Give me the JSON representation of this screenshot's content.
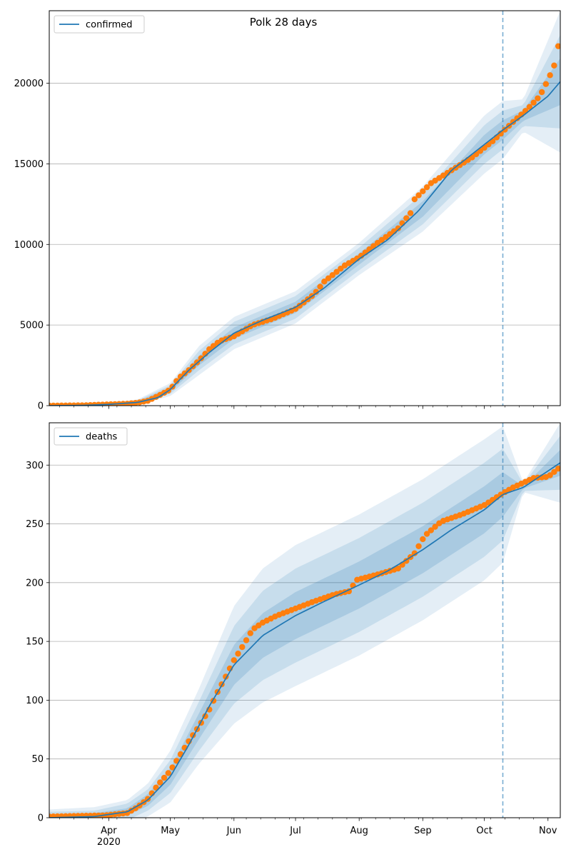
{
  "figure": {
    "title": "Polk 28 days"
  },
  "chart_data": [
    {
      "type": "line",
      "title": "Polk 28 days",
      "xlabel": "",
      "ylabel": "",
      "x_ticks": [
        "Apr",
        "May",
        "Jun",
        "Jul",
        "Aug",
        "Sep",
        "Oct",
        "Nov"
      ],
      "x_year_label": "2020",
      "x_range": [
        "2020-03-03",
        "2020-11-07"
      ],
      "ylim": [
        0,
        24500
      ],
      "y_ticks": [
        0,
        5000,
        10000,
        15000,
        20000
      ],
      "y_tick_labels": [
        "0",
        "5000",
        "10000",
        "15000",
        "20000"
      ],
      "grid": "horizontal",
      "legend_position": "upper-left",
      "forecast_start": "2020-10-10",
      "series": [
        {
          "name": "confirmed",
          "kind": "model-line",
          "color": "#1f77b4",
          "x": [
            "2020-03-03",
            "2020-03-20",
            "2020-04-01",
            "2020-04-15",
            "2020-04-25",
            "2020-05-01",
            "2020-05-10",
            "2020-05-20",
            "2020-06-01",
            "2020-06-15",
            "2020-07-01",
            "2020-07-15",
            "2020-08-01",
            "2020-08-15",
            "2020-08-30",
            "2020-09-15",
            "2020-10-01",
            "2020-10-10",
            "2020-10-20",
            "2020-11-01",
            "2020-11-07"
          ],
          "y": [
            0,
            20,
            80,
            200,
            500,
            1000,
            2200,
            3300,
            4500,
            5300,
            6100,
            7300,
            9100,
            10300,
            12100,
            14600,
            16200,
            17100,
            18000,
            19200,
            20100
          ]
        },
        {
          "name": "confirmed-observed",
          "kind": "observed-points",
          "color": "#ff7f0e",
          "x": [
            "2020-03-03",
            "2020-03-20",
            "2020-04-01",
            "2020-04-10",
            "2020-04-15",
            "2020-04-20",
            "2020-04-25",
            "2020-05-01",
            "2020-05-05",
            "2020-05-10",
            "2020-05-15",
            "2020-05-20",
            "2020-05-25",
            "2020-06-01",
            "2020-06-10",
            "2020-06-20",
            "2020-07-01",
            "2020-07-10",
            "2020-07-15",
            "2020-07-25",
            "2020-08-01",
            "2020-08-10",
            "2020-08-20",
            "2020-08-27",
            "2020-08-28",
            "2020-09-05",
            "2020-09-15",
            "2020-09-25",
            "2020-10-05",
            "2020-10-10",
            "2020-10-15",
            "2020-10-22",
            "2020-10-28",
            "2020-11-01",
            "2020-11-03",
            "2020-11-05",
            "2020-11-06"
          ],
          "y": [
            0,
            20,
            80,
            120,
            180,
            300,
            600,
            1000,
            1700,
            2200,
            2800,
            3500,
            4000,
            4300,
            5000,
            5400,
            6000,
            6900,
            7700,
            8700,
            9200,
            10100,
            11000,
            12100,
            12800,
            13800,
            14600,
            15400,
            16400,
            17000,
            17600,
            18400,
            19200,
            20200,
            20800,
            21400,
            22300
          ]
        },
        {
          "name": "confirmed-bands",
          "kind": "uncertainty-bands",
          "color": "#1f77b4",
          "x": [
            "2020-03-03",
            "2020-04-01",
            "2020-04-15",
            "2020-05-01",
            "2020-05-15",
            "2020-06-01",
            "2020-07-01",
            "2020-08-01",
            "2020-09-01",
            "2020-10-01",
            "2020-10-10",
            "2020-10-20",
            "2020-11-07"
          ],
          "center": [
            0,
            80,
            200,
            1000,
            2800,
            4500,
            6100,
            9100,
            12200,
            16200,
            17100,
            18000,
            20100
          ],
          "half_width_outer": [
            0,
            60,
            180,
            400,
            900,
            1000,
            1000,
            1000,
            1400,
            1800,
            1800,
            1000,
            4400
          ],
          "half_width_mid": [
            0,
            40,
            120,
            270,
            600,
            700,
            700,
            700,
            950,
            1200,
            1200,
            650,
            2900
          ],
          "half_width_inner": [
            0,
            20,
            60,
            140,
            300,
            350,
            350,
            350,
            480,
            600,
            600,
            330,
            1450
          ]
        }
      ]
    },
    {
      "type": "line",
      "title": "",
      "xlabel": "",
      "ylabel": "",
      "x_ticks": [
        "Apr",
        "May",
        "Jun",
        "Jul",
        "Aug",
        "Sep",
        "Oct",
        "Nov"
      ],
      "x_year_label": "2020",
      "x_range": [
        "2020-03-03",
        "2020-11-07"
      ],
      "ylim": [
        0,
        336
      ],
      "y_ticks": [
        0,
        50,
        100,
        150,
        200,
        250,
        300
      ],
      "y_tick_labels": [
        "0",
        "50",
        "100",
        "150",
        "200",
        "250",
        "300"
      ],
      "grid": "horizontal",
      "legend_position": "upper-left",
      "forecast_start": "2020-10-10",
      "series": [
        {
          "name": "deaths",
          "kind": "model-line",
          "color": "#1f77b4",
          "x": [
            "2020-03-03",
            "2020-03-25",
            "2020-04-10",
            "2020-04-20",
            "2020-05-01",
            "2020-05-10",
            "2020-05-20",
            "2020-06-01",
            "2020-06-15",
            "2020-07-01",
            "2020-07-15",
            "2020-08-01",
            "2020-08-15",
            "2020-09-01",
            "2020-09-15",
            "2020-10-01",
            "2020-10-10",
            "2020-10-20",
            "2020-11-07"
          ],
          "y": [
            0,
            1,
            5,
            15,
            35,
            62,
            95,
            130,
            155,
            172,
            184,
            198,
            210,
            228,
            245,
            262,
            275,
            281,
            302
          ]
        },
        {
          "name": "deaths-observed",
          "kind": "observed-points",
          "color": "#ff7f0e",
          "x": [
            "2020-03-03",
            "2020-03-30",
            "2020-04-10",
            "2020-04-15",
            "2020-04-20",
            "2020-04-25",
            "2020-05-01",
            "2020-05-06",
            "2020-05-10",
            "2020-05-15",
            "2020-05-20",
            "2020-05-24",
            "2020-05-28",
            "2020-06-01",
            "2020-06-06",
            "2020-06-10",
            "2020-06-15",
            "2020-06-22",
            "2020-07-01",
            "2020-07-10",
            "2020-07-20",
            "2020-07-28",
            "2020-07-30",
            "2020-08-10",
            "2020-08-20",
            "2020-08-28",
            "2020-09-02",
            "2020-09-10",
            "2020-09-20",
            "2020-10-01",
            "2020-10-10",
            "2020-10-15",
            "2020-10-25",
            "2020-11-01",
            "2020-11-06"
          ],
          "y": [
            1,
            2,
            4,
            9,
            16,
            28,
            40,
            54,
            65,
            78,
            92,
            107,
            120,
            134,
            148,
            160,
            166,
            172,
            178,
            184,
            190,
            193,
            202,
            207,
            212,
            225,
            240,
            252,
            258,
            266,
            276,
            281,
            289,
            290,
            297
          ]
        },
        {
          "name": "deaths-bands",
          "kind": "uncertainty-bands",
          "color": "#1f77b4",
          "x": [
            "2020-03-03",
            "2020-03-25",
            "2020-04-10",
            "2020-04-20",
            "2020-05-01",
            "2020-05-15",
            "2020-06-01",
            "2020-06-15",
            "2020-07-01",
            "2020-08-01",
            "2020-09-01",
            "2020-10-01",
            "2020-10-10",
            "2020-10-20",
            "2020-11-07"
          ],
          "center": [
            0,
            1,
            5,
            15,
            35,
            78,
            130,
            155,
            172,
            198,
            228,
            262,
            275,
            281,
            302
          ],
          "half_width_outer": [
            7,
            8,
            10,
            14,
            22,
            32,
            50,
            57,
            60,
            60,
            60,
            60,
            58,
            4,
            34
          ],
          "half_width_mid": [
            5,
            5,
            7,
            9,
            14,
            21,
            33,
            38,
            40,
            40,
            40,
            40,
            39,
            3,
            23
          ],
          "half_width_inner": [
            2,
            3,
            3,
            5,
            7,
            11,
            17,
            19,
            20,
            20,
            20,
            20,
            19,
            1,
            11
          ]
        }
      ]
    }
  ]
}
